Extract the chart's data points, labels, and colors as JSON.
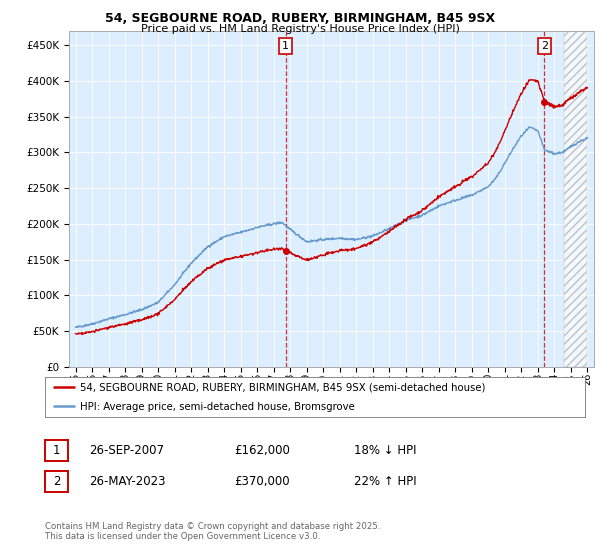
{
  "title1": "54, SEGBOURNE ROAD, RUBERY, BIRMINGHAM, B45 9SX",
  "title2": "Price paid vs. HM Land Registry's House Price Index (HPI)",
  "legend_line1": "54, SEGBOURNE ROAD, RUBERY, BIRMINGHAM, B45 9SX (semi-detached house)",
  "legend_line2": "HPI: Average price, semi-detached house, Bromsgrove",
  "annotation1_date": "26-SEP-2007",
  "annotation1_price": "£162,000",
  "annotation1_hpi": "18% ↓ HPI",
  "annotation2_date": "26-MAY-2023",
  "annotation2_price": "£370,000",
  "annotation2_hpi": "22% ↑ HPI",
  "footer": "Contains HM Land Registry data © Crown copyright and database right 2025.\nThis data is licensed under the Open Government Licence v3.0.",
  "ylim": [
    0,
    470000
  ],
  "yticks": [
    0,
    50000,
    100000,
    150000,
    200000,
    250000,
    300000,
    350000,
    400000,
    450000
  ],
  "ytick_labels": [
    "£0",
    "£50K",
    "£100K",
    "£150K",
    "£200K",
    "£250K",
    "£300K",
    "£350K",
    "£400K",
    "£450K"
  ],
  "year_start": 1995,
  "year_end": 2026,
  "sale1_year": 2007.73,
  "sale1_price": 162000,
  "sale2_year": 2023.4,
  "sale2_price": 370000,
  "red_color": "#cc0000",
  "blue_color": "#6699cc",
  "bg_color": "#ddeeff",
  "xlim_left": 1994.6,
  "xlim_right": 2026.4,
  "hatch_start": 2024.6
}
